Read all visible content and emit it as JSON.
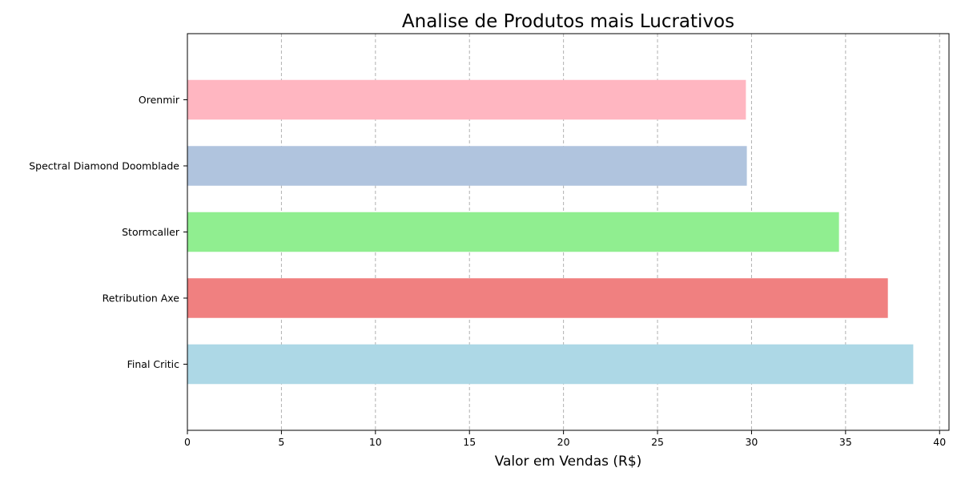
{
  "chart_data": {
    "type": "bar",
    "orientation": "horizontal",
    "title": "Analise de Produtos mais Lucrativos",
    "xlabel": "Valor em Vendas (R$)",
    "ylabel": "",
    "xlim": [
      0,
      40.5
    ],
    "xticks": [
      0,
      5,
      10,
      15,
      20,
      25,
      30,
      35,
      40
    ],
    "grid": "x-dashed",
    "categories": [
      "Final Critic",
      "Retribution Axe",
      "Stormcaller",
      "Spectral Diamond Doomblade",
      "Orenmir"
    ],
    "values": [
      38.6,
      37.25,
      34.65,
      29.75,
      29.7
    ],
    "colors": [
      "#add8e6",
      "#f08080",
      "#90ee90",
      "#b0c4de",
      "#ffb6c1"
    ]
  }
}
